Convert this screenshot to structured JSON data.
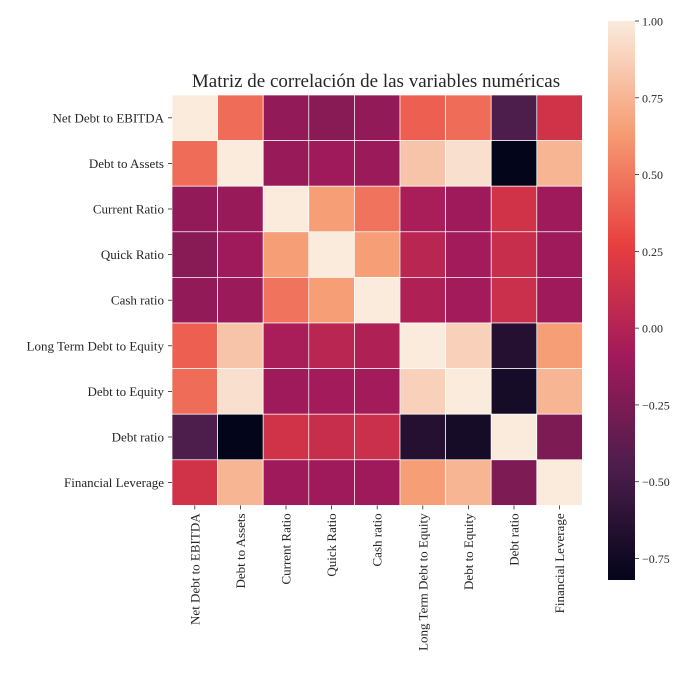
{
  "chart_data": {
    "type": "heatmap",
    "title": "Matriz de correlación de las variables numéricas",
    "xlabel": "",
    "ylabel": "",
    "row_labels": [
      "Net Debt to EBITDA",
      "Debt to Assets",
      "Current Ratio",
      "Quick Ratio",
      "Cash ratio",
      "Long Term Debt to Equity",
      "Debt to Equity",
      "Debt ratio",
      "Financial Leverage"
    ],
    "col_labels": [
      "Net Debt to EBITDA",
      "Debt to Assets",
      "Current Ratio",
      "Quick Ratio",
      "Cash ratio",
      "Long Term Debt to Equity",
      "Debt to Equity",
      "Debt ratio",
      "Financial Leverage"
    ],
    "values": [
      [
        1.0,
        0.45,
        -0.15,
        -0.2,
        -0.15,
        0.4,
        0.45,
        -0.45,
        0.15
      ],
      [
        0.45,
        1.0,
        -0.13,
        -0.1,
        -0.12,
        0.82,
        0.95,
        -0.82,
        0.75
      ],
      [
        -0.15,
        -0.13,
        1.0,
        0.65,
        0.48,
        -0.05,
        -0.1,
        0.15,
        -0.1
      ],
      [
        -0.2,
        -0.1,
        0.65,
        1.0,
        0.65,
        0.03,
        -0.08,
        0.1,
        -0.1
      ],
      [
        -0.15,
        -0.12,
        0.48,
        0.65,
        1.0,
        -0.02,
        -0.08,
        0.12,
        -0.1
      ],
      [
        0.4,
        0.82,
        -0.05,
        0.03,
        -0.02,
        1.0,
        0.88,
        -0.65,
        0.65
      ],
      [
        0.45,
        0.95,
        -0.1,
        -0.08,
        -0.08,
        0.88,
        1.0,
        -0.72,
        0.75
      ],
      [
        -0.45,
        -0.82,
        0.15,
        0.1,
        0.12,
        -0.65,
        -0.72,
        1.0,
        -0.25
      ],
      [
        0.15,
        0.75,
        -0.1,
        -0.1,
        -0.1,
        0.65,
        0.75,
        -0.25,
        1.0
      ]
    ],
    "colorbar": {
      "min": -0.82,
      "max": 1.0,
      "ticks": [
        1.0,
        0.75,
        0.5,
        0.25,
        0.0,
        -0.25,
        -0.5,
        -0.75
      ],
      "tick_labels": [
        "1.00",
        "0.75",
        "0.50",
        "0.25",
        "0.00",
        "−0.25",
        "−0.50",
        "−0.75"
      ]
    },
    "colormap": [
      "#03051a",
      "#4c1d4b",
      "#a11a5b",
      "#e83f3f",
      "#f69c73",
      "#faebdd"
    ],
    "grid_line_color": "#ffffff"
  }
}
